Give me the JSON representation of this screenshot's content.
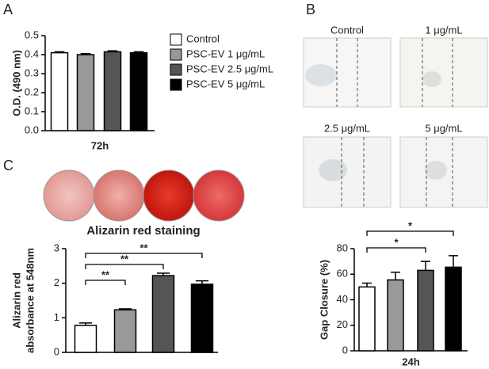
{
  "figure": {
    "panel_labels": [
      "A",
      "B",
      "C"
    ],
    "scratch_images": [
      "Control",
      "1 μg/mL",
      "2.5 μg/mL",
      "5 μg/mL"
    ],
    "staining_title": "Alizarin red staining"
  },
  "chart_data": [
    {
      "type": "bar",
      "ylabel": "O.D. (490 nm)",
      "xlabel": "72h",
      "ylim": [
        0,
        0.5
      ],
      "yticks": [
        {
          "value": 0,
          "label": "0.0"
        },
        0.1,
        0.2,
        0.3,
        0.4,
        0.5
      ],
      "series": [
        {
          "name": "Control",
          "color": "#ffffff",
          "values": [
            0.41
          ],
          "errors": [
            0.005
          ]
        },
        {
          "name": "PSC-EV 1 μg/mL",
          "color": "#999999",
          "values": [
            0.4
          ],
          "errors": [
            0.005
          ]
        },
        {
          "name": "PSC-EV 2.5 μg/mL",
          "color": "#555555",
          "values": [
            0.415
          ],
          "errors": [
            0.005
          ]
        },
        {
          "name": "PSC-EV 5 μg/mL",
          "color": "#000000",
          "values": [
            0.41
          ],
          "errors": [
            0.005
          ]
        }
      ]
    },
    {
      "type": "bar",
      "ylabel": [
        "Alizarin red",
        "absorbance at 548nm"
      ],
      "ylim": [
        0,
        3
      ],
      "yticks": [
        0,
        1,
        2,
        3
      ],
      "series": [
        {
          "color": "#ffffff",
          "values": [
            0.78
          ],
          "errors": [
            0.07
          ]
        },
        {
          "color": "#999999",
          "values": [
            1.23
          ],
          "errors": [
            0.03
          ]
        },
        {
          "color": "#555555",
          "values": [
            2.22
          ],
          "errors": [
            0.07
          ]
        },
        {
          "color": "#000000",
          "values": [
            1.97
          ],
          "errors": [
            0.1
          ]
        }
      ],
      "significance": [
        {
          "from": 0,
          "to": 1,
          "label": "**"
        },
        {
          "from": 0,
          "to": 2,
          "label": "**"
        },
        {
          "from": 0,
          "to": 3,
          "label": "**"
        }
      ]
    },
    {
      "type": "bar",
      "ylabel": "Gap Closure (%)",
      "xlabel": "24h",
      "ylim": [
        0,
        80
      ],
      "yticks": [
        0,
        20,
        40,
        60,
        80
      ],
      "series": [
        {
          "color": "#ffffff",
          "values": [
            50
          ],
          "errors": [
            3
          ]
        },
        {
          "color": "#999999",
          "values": [
            55.5
          ],
          "errors": [
            6
          ]
        },
        {
          "color": "#555555",
          "values": [
            63
          ],
          "errors": [
            7
          ]
        },
        {
          "color": "#000000",
          "values": [
            65.5
          ],
          "errors": [
            9
          ]
        }
      ],
      "significance": [
        {
          "from": 0,
          "to": 2,
          "label": "*"
        },
        {
          "from": 0,
          "to": 3,
          "label": "*"
        }
      ]
    }
  ]
}
